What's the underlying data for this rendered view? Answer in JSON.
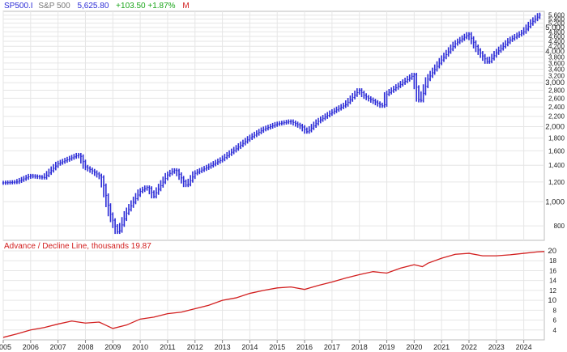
{
  "header": {
    "symbol": "SP500.I",
    "name": "S&P 500",
    "last": "5,625.80",
    "change": "+103.50 +1.87%",
    "period": "M"
  },
  "lower_header": {
    "title": "Advance / Decline Line, thousands 19.87"
  },
  "colors": {
    "price": "#2b2bd6",
    "ad_line": "#d21f1f",
    "grid": "#e6e6e6",
    "header_symbol": "#2b2bd6",
    "header_name": "#777777",
    "header_change": "#1aa51a",
    "header_period": "#d21f1f"
  },
  "chart_data": [
    {
      "type": "line",
      "title": "SP500.I",
      "yscale": "log",
      "ylim": [
        700,
        5800
      ],
      "xlim": [
        2005.0,
        2024.75
      ],
      "yticks": [
        800,
        1000,
        1200,
        1400,
        1600,
        1800,
        2000,
        2200,
        2400,
        2600,
        2800,
        3000,
        3200,
        3400,
        3600,
        3800,
        4000,
        4200,
        4400,
        4600,
        4800,
        5000,
        5200,
        5400,
        5600
      ],
      "ytick_labels": [
        "800",
        "1,000",
        "1,200",
        "1,400",
        "1,600",
        "1,800",
        "2,000",
        "2,200",
        "2,400",
        "2,600",
        "2,800",
        "3,000",
        "3,200",
        "3,400",
        "3,600",
        "3,800",
        "4,000",
        "4,200",
        "4,400",
        "4,600",
        "4,800",
        "5,000",
        "5,200",
        "5,400",
        "5,600"
      ],
      "ytick_bold": [
        "1,000",
        "2,000",
        "3,000",
        "4,000",
        "5,000"
      ],
      "grid": true,
      "series": [
        {
          "x": [
            2005.0,
            2005.5,
            2006.0,
            2006.5,
            2007.0,
            2007.5,
            2007.8,
            2008.0,
            2008.3,
            2008.6,
            2008.9,
            2009.2,
            2009.5,
            2010.0,
            2010.3,
            2010.5,
            2011.0,
            2011.3,
            2011.7,
            2012.0,
            2012.5,
            2013.0,
            2013.5,
            2014.0,
            2014.5,
            2015.0,
            2015.5,
            2015.9,
            2016.1,
            2016.5,
            2017.0,
            2017.5,
            2018.0,
            2018.2,
            2018.9,
            2019.0,
            2019.5,
            2020.0,
            2020.2,
            2020.5,
            2021.0,
            2021.5,
            2022.0,
            2022.3,
            2022.7,
            2023.0,
            2023.5,
            2024.0,
            2024.3,
            2024.6
          ],
          "values": [
            1190,
            1200,
            1270,
            1250,
            1420,
            1500,
            1550,
            1380,
            1320,
            1250,
            900,
            740,
            900,
            1100,
            1150,
            1050,
            1280,
            1350,
            1150,
            1300,
            1380,
            1480,
            1630,
            1800,
            1950,
            2050,
            2100,
            2000,
            1900,
            2100,
            2280,
            2450,
            2800,
            2650,
            2400,
            2700,
            2950,
            3230,
            2450,
            3100,
            3700,
            4300,
            4700,
            4100,
            3600,
            3950,
            4450,
            4800,
            5250,
            5625
          ]
        }
      ]
    },
    {
      "type": "line",
      "title": "Advance / Decline Line, thousands 19.87",
      "ylim": [
        2,
        20
      ],
      "xlim": [
        2005.0,
        2024.75
      ],
      "yticks": [
        4,
        6,
        8,
        10,
        12,
        14,
        16,
        18,
        20
      ],
      "ytick_bold": [
        "10",
        "20"
      ],
      "xticks": [
        2005,
        2006,
        2007,
        2008,
        2009,
        2010,
        2011,
        2012,
        2013,
        2014,
        2015,
        2016,
        2017,
        2018,
        2019,
        2020,
        2021,
        2022,
        2023,
        2024
      ],
      "grid": true,
      "series": [
        {
          "x": [
            2005.0,
            2005.5,
            2006.0,
            2006.5,
            2007.0,
            2007.5,
            2008.0,
            2008.5,
            2009.0,
            2009.5,
            2010.0,
            2010.5,
            2011.0,
            2011.5,
            2012.0,
            2012.5,
            2013.0,
            2013.5,
            2014.0,
            2014.5,
            2015.0,
            2015.5,
            2016.0,
            2016.5,
            2017.0,
            2017.5,
            2018.0,
            2018.5,
            2019.0,
            2019.5,
            2020.0,
            2020.3,
            2020.5,
            2021.0,
            2021.5,
            2022.0,
            2022.5,
            2023.0,
            2023.5,
            2024.0,
            2024.5,
            2024.75
          ],
          "values": [
            2.5,
            3.2,
            4.0,
            4.5,
            5.2,
            5.8,
            5.4,
            5.6,
            4.3,
            5.0,
            6.2,
            6.6,
            7.3,
            7.6,
            8.3,
            9.0,
            10.0,
            10.5,
            11.4,
            12.0,
            12.5,
            12.7,
            12.2,
            13.0,
            13.7,
            14.5,
            15.2,
            15.8,
            15.5,
            16.5,
            17.2,
            16.8,
            17.5,
            18.5,
            19.3,
            19.5,
            19.0,
            19.0,
            19.2,
            19.5,
            19.8,
            19.87
          ]
        }
      ]
    }
  ]
}
